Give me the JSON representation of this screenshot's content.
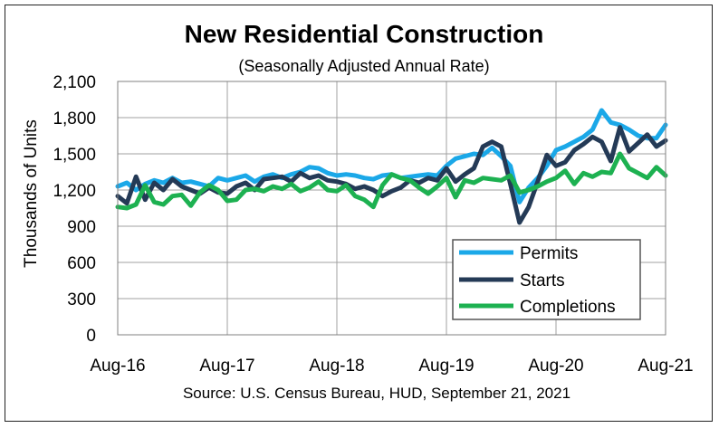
{
  "chart_data": {
    "type": "line",
    "title": "New Residential Construction",
    "subtitle": "(Seasonally Adjusted Annual Rate)",
    "ylabel": "Thousands of Units",
    "xlabel": "",
    "source": "Source:  U.S. Census Bureau, HUD, September 21, 2021",
    "ylim": [
      0,
      2100
    ],
    "yticks": [
      0,
      300,
      600,
      900,
      1200,
      1500,
      1800,
      2100
    ],
    "ytick_labels": [
      "0",
      "300",
      "600",
      "900",
      "1,200",
      "1,500",
      "1,800",
      "2,100"
    ],
    "xtick_labels": [
      "Aug-16",
      "Aug-17",
      "Aug-18",
      "Aug-19",
      "Aug-20",
      "Aug-21"
    ],
    "xtick_indices": [
      0,
      12,
      24,
      36,
      48,
      60
    ],
    "legend_position": "bottom-right",
    "grid": true,
    "series": [
      {
        "name": "Permits",
        "color": "#1BA8E8",
        "values": [
          1230,
          1260,
          1200,
          1250,
          1280,
          1260,
          1300,
          1260,
          1270,
          1250,
          1230,
          1300,
          1280,
          1300,
          1320,
          1270,
          1310,
          1330,
          1300,
          1330,
          1350,
          1390,
          1380,
          1340,
          1320,
          1330,
          1320,
          1300,
          1290,
          1320,
          1330,
          1300,
          1310,
          1320,
          1330,
          1320,
          1400,
          1460,
          1480,
          1500,
          1490,
          1550,
          1480,
          1400,
          1100,
          1220,
          1300,
          1400,
          1530,
          1560,
          1600,
          1640,
          1700,
          1860,
          1760,
          1740,
          1700,
          1650,
          1630,
          1630,
          1740
        ]
      },
      {
        "name": "Starts",
        "color": "#243A56",
        "values": [
          1150,
          1090,
          1310,
          1120,
          1260,
          1200,
          1290,
          1230,
          1200,
          1170,
          1220,
          1180,
          1170,
          1230,
          1260,
          1200,
          1290,
          1300,
          1310,
          1270,
          1340,
          1300,
          1320,
          1280,
          1270,
          1250,
          1210,
          1230,
          1200,
          1150,
          1190,
          1220,
          1280,
          1260,
          1300,
          1280,
          1380,
          1270,
          1330,
          1380,
          1560,
          1600,
          1560,
          1250,
          930,
          1060,
          1270,
          1490,
          1400,
          1430,
          1530,
          1580,
          1640,
          1600,
          1440,
          1720,
          1520,
          1590,
          1660,
          1560,
          1610
        ]
      },
      {
        "name": "Completions",
        "color": "#1DB151",
        "values": [
          1060,
          1050,
          1080,
          1240,
          1100,
          1080,
          1150,
          1160,
          1070,
          1180,
          1240,
          1200,
          1110,
          1120,
          1200,
          1210,
          1190,
          1230,
          1210,
          1250,
          1190,
          1220,
          1270,
          1200,
          1190,
          1240,
          1150,
          1120,
          1060,
          1240,
          1330,
          1300,
          1280,
          1220,
          1170,
          1230,
          1300,
          1140,
          1280,
          1260,
          1300,
          1290,
          1280,
          1320,
          1180,
          1200,
          1230,
          1270,
          1300,
          1360,
          1250,
          1340,
          1310,
          1350,
          1340,
          1500,
          1380,
          1340,
          1300,
          1390,
          1320
        ]
      }
    ]
  }
}
